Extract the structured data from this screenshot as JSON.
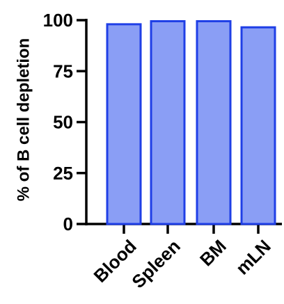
{
  "chart_data": {
    "type": "bar",
    "title": "",
    "xlabel": "",
    "ylabel": "% of B cell depletion",
    "categories": [
      "Blood",
      "Spleen",
      "BM",
      "mLN"
    ],
    "values": [
      98,
      99.5,
      99.5,
      96.5
    ],
    "ylim": [
      0,
      100
    ],
    "yticks": [
      "0",
      "25",
      "50",
      "75",
      "100"
    ],
    "grid": false,
    "legend": "none",
    "colors": {
      "bar_fill": "#8a9ef5",
      "bar_stroke": "#1f3fe6",
      "axis": "#000000"
    }
  }
}
